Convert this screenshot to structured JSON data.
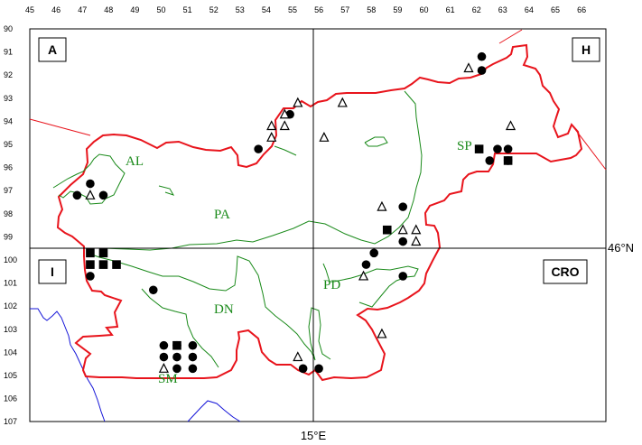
{
  "map": {
    "x_ticks": [
      "45",
      "46",
      "47",
      "48",
      "49",
      "50",
      "51",
      "52",
      "53",
      "54",
      "55",
      "56",
      "57",
      "58",
      "59",
      "60",
      "61",
      "62",
      "63",
      "64",
      "65",
      "66"
    ],
    "y_ticks": [
      "90",
      "91",
      "92",
      "93",
      "94",
      "95",
      "96",
      "97",
      "98",
      "99",
      "100",
      "101",
      "102",
      "103",
      "104",
      "105",
      "106",
      "107"
    ],
    "meridian_label": "15°E",
    "parallel_label": "46°N",
    "country_labels": {
      "austria": "A",
      "hungary": "H",
      "italy": "I",
      "croatia": "CRO"
    },
    "region_labels": {
      "al": "AL",
      "pa": "PA",
      "sp": "SP",
      "dn": "DN",
      "pd": "PD",
      "sm": "SM"
    },
    "colors": {
      "border": "#e8141c",
      "regions": "#1a8a1a",
      "coast": "#1414d8",
      "axes": "#000000"
    },
    "symbols": {
      "circles": [
        [
          62.2,
          91.2
        ],
        [
          62.2,
          91.8
        ],
        [
          54.9,
          93.7
        ],
        [
          53.7,
          95.2
        ],
        [
          62.5,
          95.7
        ],
        [
          63.2,
          95.2
        ],
        [
          62.8,
          95.2
        ],
        [
          63.2,
          95.7
        ],
        [
          47.3,
          96.7
        ],
        [
          46.8,
          97.2
        ],
        [
          47.8,
          97.2
        ],
        [
          59.2,
          97.7
        ],
        [
          59.2,
          99.2
        ],
        [
          58.1,
          99.7
        ],
        [
          57.8,
          100.2
        ],
        [
          47.3,
          100.7
        ],
        [
          49.7,
          101.3
        ],
        [
          59.2,
          100.7
        ],
        [
          50.1,
          103.7
        ],
        [
          50.6,
          103.7
        ],
        [
          51.2,
          103.7
        ],
        [
          50.1,
          104.2
        ],
        [
          50.6,
          104.2
        ],
        [
          51.2,
          104.2
        ],
        [
          50.6,
          104.7
        ],
        [
          51.2,
          104.7
        ],
        [
          55.4,
          104.7
        ],
        [
          56.0,
          104.7
        ]
      ],
      "squares": [
        [
          62.1,
          95.2
        ],
        [
          63.2,
          95.7
        ],
        [
          58.6,
          98.7
        ],
        [
          47.3,
          99.7
        ],
        [
          47.8,
          99.7
        ],
        [
          47.3,
          100.2
        ],
        [
          47.8,
          100.2
        ],
        [
          48.3,
          100.2
        ],
        [
          50.6,
          103.7
        ]
      ],
      "triangles": [
        [
          61.7,
          91.7
        ],
        [
          55.2,
          93.2
        ],
        [
          56.9,
          93.2
        ],
        [
          54.7,
          93.7
        ],
        [
          54.2,
          94.2
        ],
        [
          54.7,
          94.2
        ],
        [
          54.2,
          94.7
        ],
        [
          56.2,
          94.7
        ],
        [
          63.3,
          94.2
        ],
        [
          47.3,
          97.2
        ],
        [
          58.4,
          97.7
        ],
        [
          59.2,
          98.7
        ],
        [
          59.7,
          98.7
        ],
        [
          59.7,
          99.2
        ],
        [
          57.7,
          100.7
        ],
        [
          58.4,
          103.2
        ],
        [
          55.2,
          104.2
        ],
        [
          50.1,
          104.7
        ]
      ]
    }
  }
}
